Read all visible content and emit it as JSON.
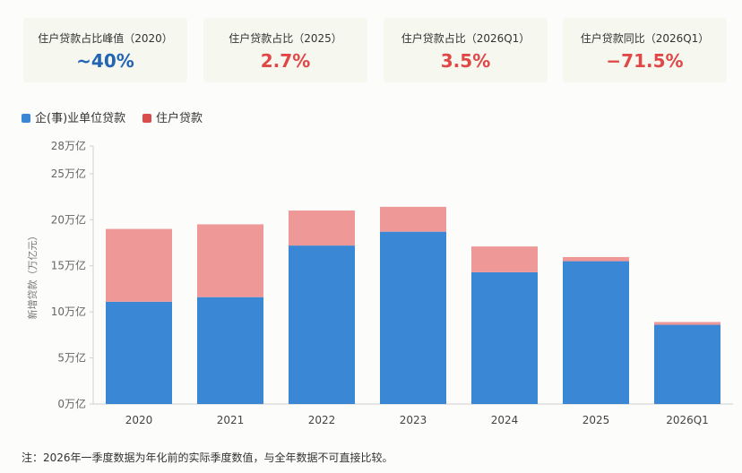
{
  "kpis": [
    {
      "label": "住户贷款占比峰值（2020）",
      "value": "~40%",
      "color": "#2364b4"
    },
    {
      "label": "住户贷款占比（2025）",
      "value": "2.7%",
      "color": "#e04848"
    },
    {
      "label": "住户贷款占比（2026Q1）",
      "value": "3.5%",
      "color": "#e04848"
    },
    {
      "label": "住户贷款同比（2026Q1）",
      "value": "−71.5%",
      "color": "#e04848"
    }
  ],
  "legend": [
    {
      "label": "企(事)业单位贷款",
      "color": "#3a87d6"
    },
    {
      "label": "住户贷款",
      "color": "#d84c4c"
    }
  ],
  "footnote": "注：2026年一季度数据为年化前的实际季度数值，与全年数据不可直接比较。",
  "chart_data": {
    "type": "bar",
    "stacked": true,
    "categories": [
      "2020",
      "2021",
      "2022",
      "2023",
      "2024",
      "2025",
      "2026Q1"
    ],
    "series": [
      {
        "name": "企(事)业单位贷款",
        "values": [
          11.1,
          11.6,
          17.2,
          18.7,
          14.3,
          15.5,
          8.6
        ],
        "color": "#3a87d6"
      },
      {
        "name": "住户贷款",
        "values": [
          7.9,
          7.9,
          3.8,
          2.7,
          2.8,
          0.45,
          0.3
        ],
        "color": "#ee9898"
      }
    ],
    "ylabel": "新增贷款（万亿元）",
    "ylim": [
      0,
      28
    ],
    "yticks": [
      0,
      5,
      10,
      15,
      20,
      25,
      28
    ],
    "ytick_labels": [
      "0万亿",
      "5万亿",
      "10万亿",
      "15万亿",
      "20万亿",
      "25万亿",
      "28万亿"
    ],
    "grid": false
  }
}
